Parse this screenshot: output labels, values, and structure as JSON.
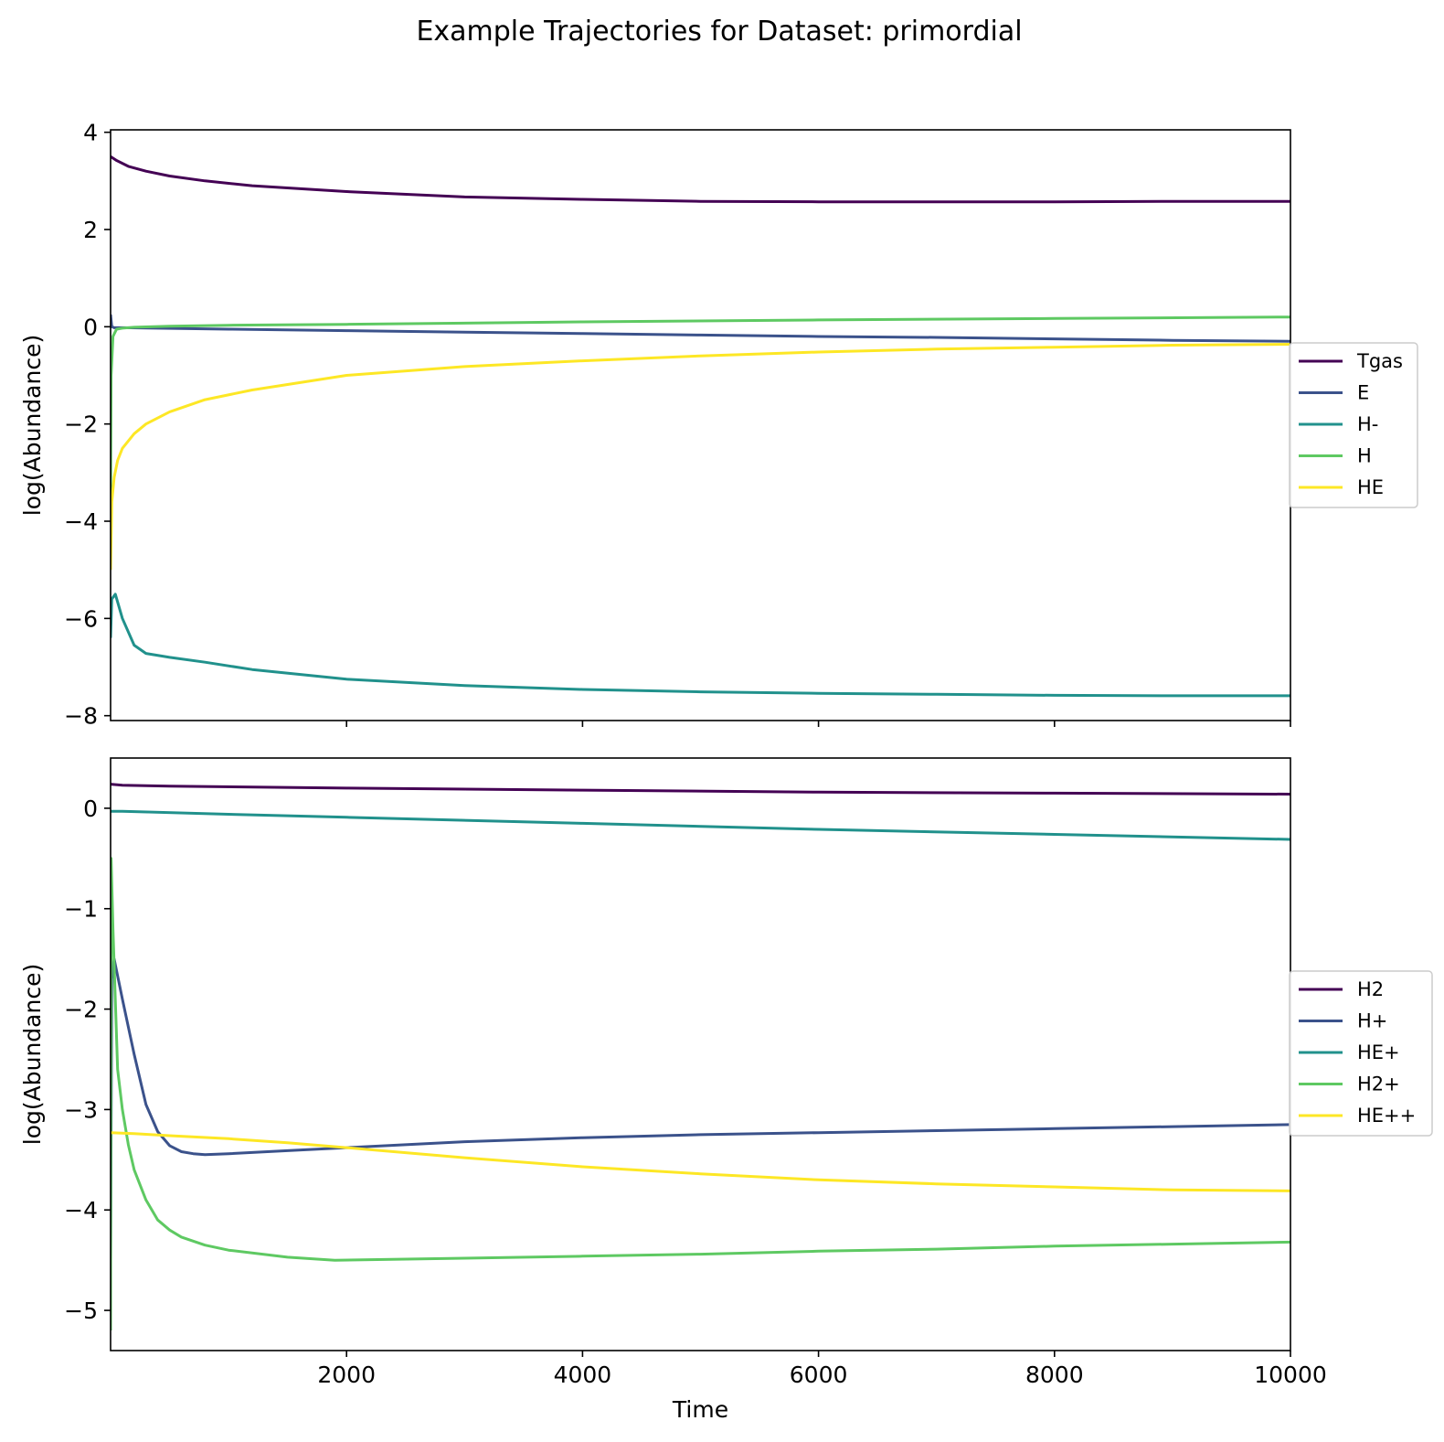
{
  "title": "Example Trajectories for Dataset: primordial",
  "chart_data": [
    {
      "type": "line",
      "xlabel": "",
      "ylabel": "log(Abundance)",
      "xlim": [
        0,
        10000
      ],
      "ylim": [
        -8.1,
        4.05
      ],
      "yticks": [
        4,
        2,
        0,
        -2,
        -4,
        -6,
        -8
      ],
      "ytick_labels": [
        "4",
        "2",
        "0",
        "−2",
        "−4",
        "−6",
        "−8"
      ],
      "xticks": [
        2000,
        4000,
        6000,
        8000,
        10000
      ],
      "xtick_labels": [],
      "grid": false,
      "legend_position": "right",
      "series": [
        {
          "name": "Tgas",
          "color": "#440154",
          "x": [
            0,
            50,
            150,
            300,
            500,
            800,
            1200,
            2000,
            3000,
            4000,
            5000,
            6000,
            7000,
            8000,
            9000,
            10000
          ],
          "y": [
            3.5,
            3.42,
            3.3,
            3.2,
            3.1,
            3.0,
            2.9,
            2.78,
            2.67,
            2.62,
            2.58,
            2.57,
            2.57,
            2.57,
            2.58,
            2.58
          ]
        },
        {
          "name": "E",
          "color": "#3b528b",
          "x": [
            0,
            10,
            30,
            100,
            1000,
            2000,
            3000,
            4000,
            5000,
            6000,
            7000,
            8000,
            9000,
            10000
          ],
          "y": [
            0.25,
            0.0,
            -0.02,
            -0.02,
            -0.05,
            -0.08,
            -0.11,
            -0.14,
            -0.17,
            -0.2,
            -0.22,
            -0.25,
            -0.28,
            -0.3
          ]
        },
        {
          "name": "H-",
          "color": "#21918c",
          "x": [
            0,
            10,
            40,
            100,
            200,
            300,
            500,
            800,
            1200,
            2000,
            3000,
            4000,
            5000,
            6000,
            7000,
            8000,
            9000,
            10000
          ],
          "y": [
            -6.4,
            -5.6,
            -5.5,
            -6.0,
            -6.55,
            -6.72,
            -6.8,
            -6.9,
            -7.05,
            -7.25,
            -7.38,
            -7.46,
            -7.51,
            -7.54,
            -7.56,
            -7.58,
            -7.59,
            -7.59
          ]
        },
        {
          "name": "H",
          "color": "#5ec962",
          "x": [
            0,
            5,
            20,
            50,
            100,
            200,
            500,
            1000,
            2000,
            4000,
            6000,
            8000,
            10000
          ],
          "y": [
            -3.5,
            -1.0,
            -0.2,
            -0.05,
            -0.03,
            -0.01,
            0.01,
            0.03,
            0.05,
            0.1,
            0.14,
            0.17,
            0.2
          ]
        },
        {
          "name": "HE",
          "color": "#fde725",
          "x": [
            0,
            10,
            30,
            60,
            100,
            200,
            300,
            500,
            800,
            1200,
            2000,
            3000,
            4000,
            5000,
            6000,
            7000,
            8000,
            9000,
            10000
          ],
          "y": [
            -5.0,
            -3.6,
            -3.1,
            -2.75,
            -2.5,
            -2.2,
            -2.0,
            -1.75,
            -1.5,
            -1.3,
            -1.0,
            -0.82,
            -0.7,
            -0.6,
            -0.52,
            -0.46,
            -0.42,
            -0.38,
            -0.36
          ]
        }
      ]
    },
    {
      "type": "line",
      "xlabel": "Time",
      "ylabel": "log(Abundance)",
      "xlim": [
        0,
        10000
      ],
      "ylim": [
        -5.4,
        0.5
      ],
      "yticks": [
        0,
        -1,
        -2,
        -3,
        -4,
        -5
      ],
      "ytick_labels": [
        "0",
        "−1",
        "−2",
        "−3",
        "−4",
        "−5"
      ],
      "xticks": [
        2000,
        4000,
        6000,
        8000,
        10000
      ],
      "xtick_labels": [
        "2000",
        "4000",
        "6000",
        "8000",
        "10000"
      ],
      "grid": false,
      "legend_position": "right",
      "series": [
        {
          "name": "H2",
          "color": "#440154",
          "x": [
            0,
            100,
            500,
            2000,
            4000,
            6000,
            8000,
            10000
          ],
          "y": [
            0.24,
            0.23,
            0.22,
            0.2,
            0.18,
            0.16,
            0.15,
            0.14
          ]
        },
        {
          "name": "H+",
          "color": "#3b528b",
          "x": [
            0,
            10,
            30,
            100,
            200,
            300,
            400,
            500,
            600,
            700,
            800,
            1000,
            1500,
            2000,
            3000,
            4000,
            5000,
            6000,
            7000,
            8000,
            9000,
            10000
          ],
          "y": [
            -4.5,
            -1.7,
            -1.5,
            -1.9,
            -2.45,
            -2.95,
            -3.22,
            -3.36,
            -3.42,
            -3.44,
            -3.45,
            -3.44,
            -3.41,
            -3.38,
            -3.32,
            -3.28,
            -3.25,
            -3.23,
            -3.21,
            -3.19,
            -3.17,
            -3.15
          ]
        },
        {
          "name": "HE+",
          "color": "#21918c",
          "x": [
            0,
            100,
            1000,
            2000,
            4000,
            6000,
            8000,
            10000
          ],
          "y": [
            -0.03,
            -0.03,
            -0.06,
            -0.09,
            -0.15,
            -0.21,
            -0.26,
            -0.31
          ]
        },
        {
          "name": "H2+",
          "color": "#5ec962",
          "x": [
            0,
            5,
            20,
            60,
            100,
            150,
            200,
            300,
            400,
            500,
            600,
            800,
            1000,
            1500,
            1900,
            3000,
            4000,
            5000,
            6000,
            7000,
            8000,
            9000,
            10000
          ],
          "y": [
            -5.2,
            -0.5,
            -1.2,
            -2.6,
            -3.0,
            -3.35,
            -3.6,
            -3.9,
            -4.1,
            -4.2,
            -4.27,
            -4.35,
            -4.4,
            -4.47,
            -4.5,
            -4.48,
            -4.46,
            -4.44,
            -4.41,
            -4.39,
            -4.36,
            -4.34,
            -4.32
          ]
        },
        {
          "name": "HE++",
          "color": "#fde725",
          "x": [
            0,
            200,
            500,
            1000,
            1500,
            2000,
            3000,
            4000,
            5000,
            6000,
            7000,
            8000,
            9000,
            10000
          ],
          "y": [
            -3.23,
            -3.24,
            -3.26,
            -3.29,
            -3.33,
            -3.38,
            -3.48,
            -3.57,
            -3.64,
            -3.7,
            -3.74,
            -3.77,
            -3.8,
            -3.81
          ]
        }
      ]
    }
  ]
}
